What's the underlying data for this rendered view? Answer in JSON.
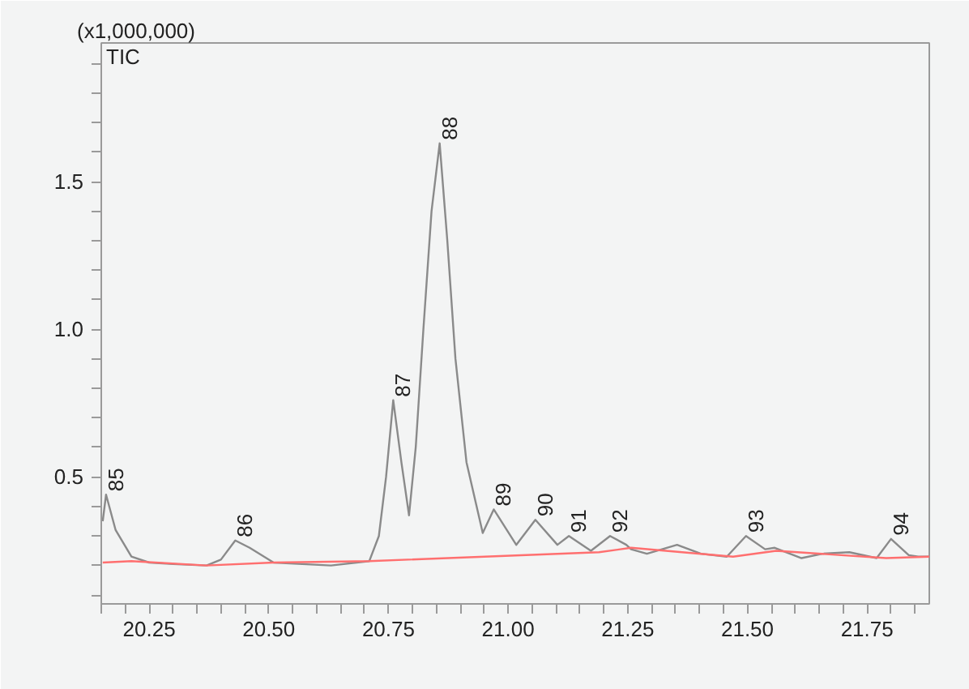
{
  "chart_data": {
    "type": "line",
    "ylabel": "(x1,000,000)",
    "xlim": [
      20.15,
      21.88
    ],
    "ylim": [
      0.07,
      1.97
    ],
    "xticks": [
      {
        "value": 20.15,
        "label": null
      },
      {
        "value": 20.2,
        "label": null
      },
      "20.25",
      {
        "value": 20.3,
        "label": null
      },
      {
        "value": 20.35,
        "label": null
      },
      {
        "value": 20.4,
        "label": null
      },
      {
        "value": 20.45,
        "label": null
      },
      {
        "value": 20.5,
        "label": "20.50"
      },
      {
        "value": 20.55,
        "label": null
      },
      {
        "value": 20.6,
        "label": null
      },
      {
        "value": 20.65,
        "label": null
      },
      {
        "value": 20.7,
        "label": null
      },
      {
        "value": 20.75,
        "label": "20.75"
      },
      {
        "value": 20.8,
        "label": null
      },
      {
        "value": 20.85,
        "label": null
      },
      {
        "value": 20.9,
        "label": null
      },
      {
        "value": 20.95,
        "label": null
      },
      {
        "value": 21.0,
        "label": "21.00"
      },
      {
        "value": 21.05,
        "label": null
      },
      {
        "value": 21.1,
        "label": null
      },
      {
        "value": 21.15,
        "label": null
      },
      {
        "value": 21.2,
        "label": null
      },
      {
        "value": 21.25,
        "label": "21.25"
      },
      {
        "value": 21.3,
        "label": null
      },
      {
        "value": 21.35,
        "label": null
      },
      {
        "value": 21.4,
        "label": null
      },
      {
        "value": 21.45,
        "label": null
      },
      {
        "value": 21.5,
        "label": "21.50"
      },
      {
        "value": 21.55,
        "label": null
      },
      {
        "value": 21.6,
        "label": null
      },
      {
        "value": 21.65,
        "label": null
      },
      {
        "value": 21.7,
        "label": null
      },
      {
        "value": 21.75,
        "label": "21.75"
      },
      {
        "value": 21.8,
        "label": null
      },
      {
        "value": 21.85,
        "label": null
      }
    ],
    "yticks": [
      {
        "value": 0.1,
        "label": null
      },
      {
        "value": 0.2,
        "label": null
      },
      {
        "value": 0.3,
        "label": null
      },
      {
        "value": 0.4,
        "label": null
      },
      0.5,
      {
        "value": 0.6,
        "label": null
      },
      {
        "value": 0.7,
        "label": null
      },
      {
        "value": 0.8,
        "label": null
      },
      {
        "value": 0.9,
        "label": null
      },
      {
        "value": 1.0,
        "label": "1.0"
      },
      {
        "value": 1.1,
        "label": null
      },
      {
        "value": 1.2,
        "label": null
      },
      {
        "value": 1.3,
        "label": null
      },
      {
        "value": 1.4,
        "label": null
      },
      1.5,
      {
        "value": 1.6,
        "label": null
      },
      {
        "value": 1.7,
        "label": null
      },
      {
        "value": 1.8,
        "label": null
      },
      {
        "value": 1.9,
        "label": null
      }
    ],
    "grid": false,
    "legend": false,
    "marker": "none",
    "line_style": "solid",
    "series": [
      {
        "name": "TIC",
        "color": "#8a8a8a",
        "x": [
          20.153,
          20.16,
          20.18,
          20.213,
          20.25,
          20.3,
          20.37,
          20.4,
          20.43,
          20.46,
          20.51,
          20.57,
          20.63,
          20.71,
          20.73,
          20.745,
          20.76,
          20.777,
          20.793,
          20.807,
          20.823,
          20.84,
          20.857,
          20.873,
          20.89,
          20.913,
          20.947,
          20.97,
          21.017,
          21.057,
          21.103,
          21.127,
          21.173,
          21.213,
          21.247,
          21.257,
          21.29,
          21.353,
          21.403,
          21.457,
          21.497,
          21.537,
          21.557,
          21.613,
          21.657,
          21.713,
          21.77,
          21.8,
          21.837,
          21.857,
          21.88
        ],
        "values": [
          0.35,
          0.44,
          0.32,
          0.23,
          0.21,
          0.205,
          0.2,
          0.22,
          0.285,
          0.26,
          0.21,
          0.205,
          0.2,
          0.215,
          0.3,
          0.5,
          0.76,
          0.55,
          0.37,
          0.6,
          1.0,
          1.4,
          1.63,
          1.3,
          0.9,
          0.55,
          0.31,
          0.39,
          0.27,
          0.355,
          0.27,
          0.3,
          0.25,
          0.3,
          0.27,
          0.255,
          0.24,
          0.27,
          0.24,
          0.23,
          0.3,
          0.255,
          0.26,
          0.225,
          0.24,
          0.245,
          0.225,
          0.29,
          0.235,
          0.23,
          0.23
        ]
      },
      {
        "color": "#ff6f6f",
        "x": [
          20.153,
          20.213,
          20.37,
          20.51,
          20.71,
          21.19,
          21.257,
          21.47,
          21.56,
          21.79,
          21.88
        ],
        "values": [
          0.21,
          0.215,
          0.2,
          0.21,
          0.215,
          0.245,
          0.26,
          0.23,
          0.25,
          0.225,
          0.23
        ]
      }
    ],
    "annotations": [
      {
        "text": "85",
        "x": 20.16,
        "y": 0.44
      },
      {
        "text": "86",
        "x": 20.43,
        "y": 0.285
      },
      {
        "text": "87",
        "x": 20.76,
        "y": 0.76
      },
      {
        "text": "88",
        "x": 20.857,
        "y": 1.63
      },
      {
        "text": "89",
        "x": 20.97,
        "y": 0.39
      },
      {
        "text": "90",
        "x": 21.057,
        "y": 0.355
      },
      {
        "text": "91",
        "x": 21.127,
        "y": 0.3
      },
      {
        "text": "92",
        "x": 21.213,
        "y": 0.3
      },
      {
        "text": "93",
        "x": 21.497,
        "y": 0.3
      },
      {
        "text": "94",
        "x": 21.8,
        "y": 0.29
      }
    ]
  }
}
